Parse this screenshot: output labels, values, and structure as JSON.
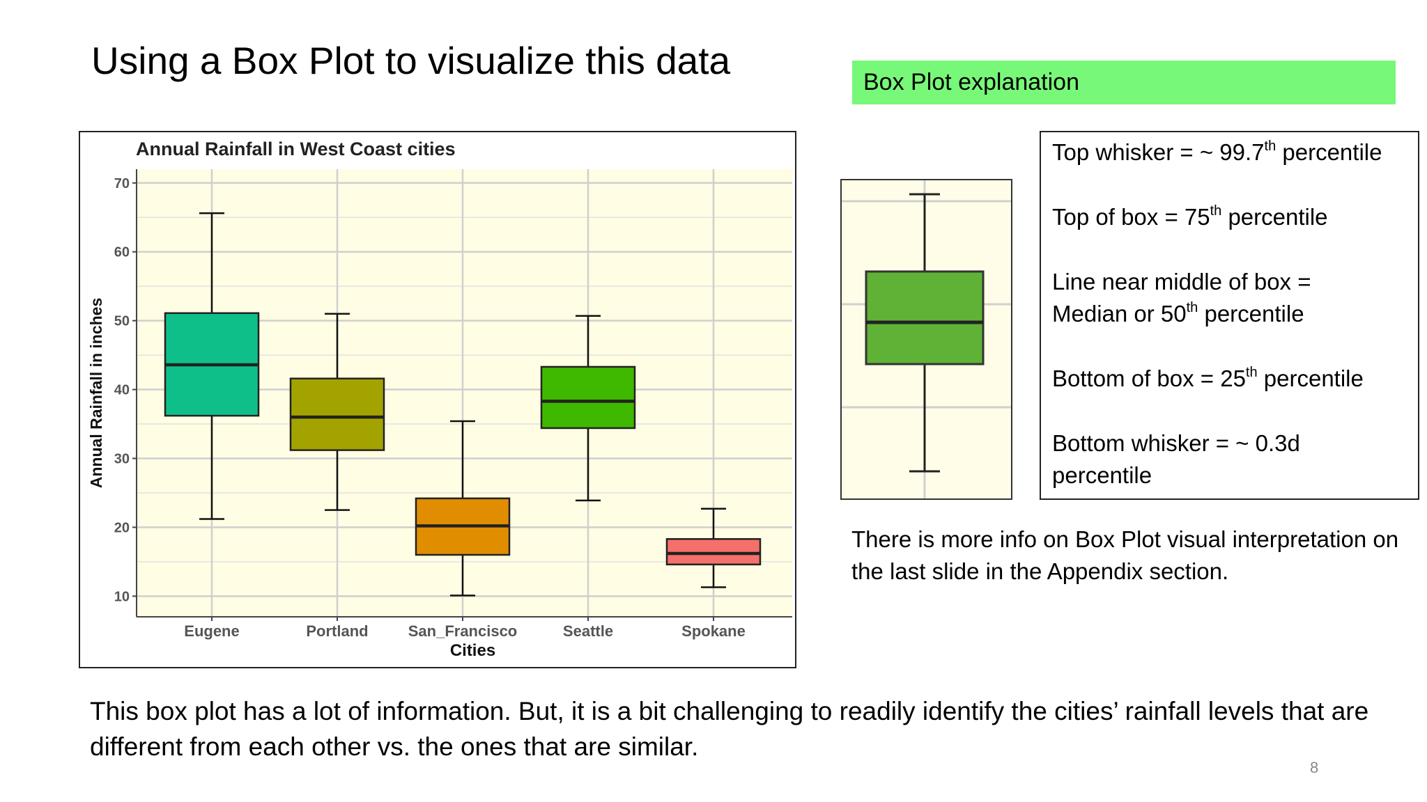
{
  "slide": {
    "title": "Using a Box Plot to visualize this data",
    "page_number": "8"
  },
  "explanation_header": "Box Plot explanation",
  "explanation": {
    "top_whisker": {
      "text": "Top whisker = ~ 99.7",
      "sup": "th",
      "tail": " percentile"
    },
    "top_box": {
      "text": "Top of box = 75",
      "sup": "th",
      "tail": " percentile"
    },
    "median_1": "Line near middle of box =",
    "median_2": {
      "text": "Median or 50",
      "sup": "th",
      "tail": " percentile"
    },
    "bottom_box": {
      "text": "Bottom of box = 25",
      "sup": "th",
      "tail": " percentile"
    },
    "bottom_whisker_1": "Bottom whisker = ~ 0.3d",
    "bottom_whisker_2": "percentile"
  },
  "more_info": "There is more info on Box Plot  visual interpretation on the last slide in the Appendix section.",
  "bottom_text": "This box plot has a lot of information.  But, it is a bit challenging to readily identify the cities’ rainfall levels that are different from each other vs. the ones that are similar.",
  "mini_box_color": "#5fb236",
  "chart_data": {
    "type": "box",
    "title": "Annual Rainfall in West Coast cities",
    "xlabel": "Cities",
    "ylabel": "Annual Rainfall in inches",
    "ylim": [
      7,
      72
    ],
    "yticks": [
      10,
      20,
      30,
      40,
      50,
      60,
      70
    ],
    "grid": true,
    "legend": "none",
    "background": "#fffde3",
    "categories": [
      "Eugene",
      "Portland",
      "San_Francisco",
      "Seattle",
      "Spokane"
    ],
    "boxes": [
      {
        "name": "Eugene",
        "whisker_low": 21.2,
        "q1": 36.2,
        "median": 43.6,
        "q3": 51.1,
        "whisker_high": 65.6,
        "color": "#0fbf8a"
      },
      {
        "name": "Portland",
        "whisker_low": 22.5,
        "q1": 31.2,
        "median": 36.0,
        "q3": 41.6,
        "whisker_high": 51.0,
        "color": "#a3a300"
      },
      {
        "name": "San_Francisco",
        "whisker_low": 10.1,
        "q1": 16.0,
        "median": 20.2,
        "q3": 24.2,
        "whisker_high": 35.4,
        "color": "#e08e00"
      },
      {
        "name": "Seattle",
        "whisker_low": 23.9,
        "q1": 34.4,
        "median": 38.3,
        "q3": 43.3,
        "whisker_high": 50.7,
        "color": "#3fb800"
      },
      {
        "name": "Spokane",
        "whisker_low": 11.3,
        "q1": 14.6,
        "median": 16.2,
        "q3": 18.3,
        "whisker_high": 22.7,
        "color": "#f5706a"
      }
    ]
  }
}
